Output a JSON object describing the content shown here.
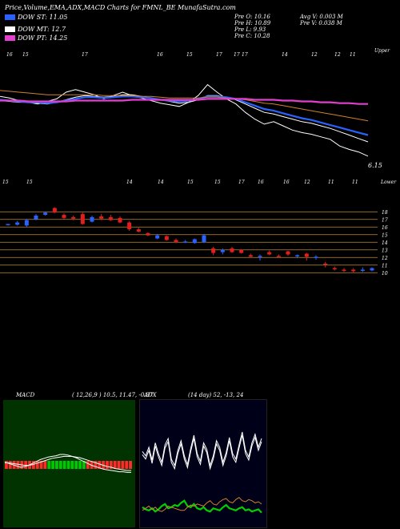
{
  "header": {
    "title": "Price,Volume,EMA,ADX,MACD Charts for FMNL_BE MunafaSutra.com",
    "legend": [
      {
        "label": "DOW ST: 11.05",
        "color": "#2a62ff"
      },
      {
        "label": "DOW MT: 12.7",
        "color": "#ffffff"
      },
      {
        "label": "DOW PT: 14.25",
        "color": "#e23fd0"
      }
    ],
    "stats_left": [
      "Pre O: 10.16",
      "Pre H: 10.89",
      "Pre L: 9.93",
      "Pre C: 10.28"
    ],
    "stats_right": [
      "Avg V: 0.003 M",
      "Pre V: 0.038 M"
    ]
  },
  "chart_data": [
    {
      "type": "line",
      "name": "price-ema",
      "tick_labels_top": [
        "16",
        "15",
        "17",
        "16",
        "15",
        "17",
        "17",
        "17",
        "14",
        "12",
        "12",
        "11"
      ],
      "tick_labels_bottom": [
        "15",
        "15",
        "14",
        "14",
        "15",
        "15",
        "17",
        "16",
        "16",
        "12",
        "11",
        "11",
        "10"
      ],
      "upper_note": "Upper",
      "lower_note": "Lower",
      "last_label": "6.15",
      "series": [
        {
          "color": "#ffffff",
          "values": [
            15.5,
            15.3,
            15.0,
            14.8,
            14.6,
            14.9,
            15.2,
            16.0,
            16.3,
            16.0,
            15.7,
            15.2,
            15.6,
            16.0,
            15.6,
            15.3,
            15.0,
            14.7,
            14.5,
            14.3,
            14.8,
            15.6,
            16.9,
            16.0,
            15.2,
            14.6,
            13.6,
            12.8,
            12.2,
            12.5,
            12.0,
            11.5,
            11.2,
            11.0,
            10.7,
            10.4,
            9.6,
            9.2,
            8.9,
            8.4
          ]
        },
        {
          "color": "#ffffff",
          "values": [
            15.0,
            14.9,
            14.8,
            14.8,
            14.7,
            14.6,
            14.8,
            15.1,
            15.4,
            15.6,
            15.5,
            15.4,
            15.5,
            15.7,
            15.7,
            15.5,
            15.3,
            15.1,
            14.9,
            14.7,
            14.8,
            15.1,
            15.6,
            15.6,
            15.4,
            15.1,
            14.6,
            14.1,
            13.6,
            13.4,
            13.1,
            12.8,
            12.5,
            12.3,
            12.0,
            11.7,
            11.3,
            10.9,
            10.5,
            10.1
          ]
        },
        {
          "color": "#2a62ff",
          "values": [
            15.1,
            15.0,
            14.9,
            14.8,
            14.8,
            14.7,
            14.8,
            15.0,
            15.2,
            15.4,
            15.4,
            15.3,
            15.4,
            15.5,
            15.5,
            15.4,
            15.3,
            15.1,
            15.0,
            14.9,
            15.0,
            15.2,
            15.5,
            15.5,
            15.4,
            15.2,
            14.8,
            14.4,
            14.0,
            13.8,
            13.5,
            13.2,
            12.9,
            12.7,
            12.4,
            12.1,
            11.8,
            11.5,
            11.2,
            10.9
          ]
        },
        {
          "color": "#d08030",
          "values": [
            16.2,
            16.1,
            16.0,
            15.9,
            15.8,
            15.7,
            15.7,
            15.7,
            15.7,
            15.7,
            15.7,
            15.6,
            15.6,
            15.6,
            15.6,
            15.5,
            15.5,
            15.4,
            15.3,
            15.3,
            15.3,
            15.3,
            15.4,
            15.4,
            15.3,
            15.2,
            15.1,
            14.9,
            14.7,
            14.6,
            14.4,
            14.2,
            14.0,
            13.8,
            13.6,
            13.4,
            13.2,
            13.0,
            12.8,
            12.6
          ]
        },
        {
          "color": "#e23fd0",
          "values": [
            15.0,
            15.0,
            15.0,
            14.9,
            14.9,
            14.9,
            14.9,
            14.9,
            15.0,
            15.0,
            15.0,
            15.0,
            15.0,
            15.0,
            15.1,
            15.1,
            15.1,
            15.1,
            15.1,
            15.1,
            15.1,
            15.1,
            15.2,
            15.2,
            15.2,
            15.2,
            15.2,
            15.1,
            15.1,
            15.1,
            15.0,
            15.0,
            14.9,
            14.9,
            14.8,
            14.8,
            14.7,
            14.7,
            14.6,
            14.6
          ]
        }
      ]
    },
    {
      "type": "candlestick",
      "name": "candles",
      "y_ticks": [
        18,
        17,
        16,
        15,
        14,
        13,
        12,
        11,
        10
      ],
      "candles": [
        {
          "o": 16.4,
          "c": 16.4,
          "h": 16.4,
          "l": 16.2,
          "color": "#2a62ff"
        },
        {
          "o": 16.3,
          "c": 16.6,
          "h": 16.8,
          "l": 16.2,
          "color": "#2a62ff"
        },
        {
          "o": 16.2,
          "c": 16.9,
          "h": 17.1,
          "l": 16.0,
          "color": "#2a62ff"
        },
        {
          "o": 17.0,
          "c": 17.5,
          "h": 17.7,
          "l": 16.9,
          "color": "#2a62ff"
        },
        {
          "o": 17.6,
          "c": 17.9,
          "h": 18.0,
          "l": 17.5,
          "color": "#2a62ff"
        },
        {
          "o": 18.5,
          "c": 17.9,
          "h": 18.6,
          "l": 17.8,
          "color": "#e02020"
        },
        {
          "o": 17.6,
          "c": 17.2,
          "h": 17.8,
          "l": 17.0,
          "color": "#e02020"
        },
        {
          "o": 17.3,
          "c": 17.1,
          "h": 17.5,
          "l": 16.9,
          "color": "#e02020"
        },
        {
          "o": 17.7,
          "c": 16.4,
          "h": 17.9,
          "l": 16.3,
          "color": "#e02020"
        },
        {
          "o": 16.7,
          "c": 17.3,
          "h": 17.5,
          "l": 16.6,
          "color": "#2a62ff"
        },
        {
          "o": 17.4,
          "c": 17.1,
          "h": 17.7,
          "l": 16.9,
          "color": "#e02020"
        },
        {
          "o": 17.3,
          "c": 16.9,
          "h": 17.6,
          "l": 16.8,
          "color": "#e02020"
        },
        {
          "o": 17.2,
          "c": 16.6,
          "h": 17.4,
          "l": 16.5,
          "color": "#e02020"
        },
        {
          "o": 16.6,
          "c": 15.7,
          "h": 16.8,
          "l": 15.5,
          "color": "#e02020"
        },
        {
          "o": 15.7,
          "c": 15.4,
          "h": 15.9,
          "l": 15.3,
          "color": "#e02020"
        },
        {
          "o": 15.2,
          "c": 14.9,
          "h": 15.3,
          "l": 14.8,
          "color": "#e02020"
        },
        {
          "o": 14.5,
          "c": 14.9,
          "h": 15.1,
          "l": 14.4,
          "color": "#2a62ff"
        },
        {
          "o": 14.8,
          "c": 14.3,
          "h": 14.9,
          "l": 14.2,
          "color": "#e02020"
        },
        {
          "o": 14.3,
          "c": 14.0,
          "h": 14.5,
          "l": 13.9,
          "color": "#e02020"
        },
        {
          "o": 14.0,
          "c": 14.1,
          "h": 14.3,
          "l": 13.9,
          "color": "#2a62ff"
        },
        {
          "o": 13.9,
          "c": 14.4,
          "h": 14.5,
          "l": 13.8,
          "color": "#2a62ff"
        },
        {
          "o": 14.0,
          "c": 14.9,
          "h": 15.1,
          "l": 13.9,
          "color": "#2a62ff"
        },
        {
          "o": 13.2,
          "c": 12.6,
          "h": 13.4,
          "l": 12.3,
          "color": "#e02020"
        },
        {
          "o": 12.7,
          "c": 13.0,
          "h": 13.2,
          "l": 12.4,
          "color": "#2a62ff"
        },
        {
          "o": 13.2,
          "c": 12.7,
          "h": 13.4,
          "l": 12.6,
          "color": "#e02020"
        },
        {
          "o": 13.0,
          "c": 12.6,
          "h": 13.1,
          "l": 12.5,
          "color": "#e02020"
        },
        {
          "o": 12.3,
          "c": 12.1,
          "h": 12.5,
          "l": 12.0,
          "color": "#e02020"
        },
        {
          "o": 12.1,
          "c": 12.2,
          "h": 12.4,
          "l": 11.6,
          "color": "#2a62ff"
        },
        {
          "o": 12.7,
          "c": 12.4,
          "h": 12.9,
          "l": 12.3,
          "color": "#e02020"
        },
        {
          "o": 12.2,
          "c": 12.2,
          "h": 12.4,
          "l": 12.0,
          "color": "#e02020"
        },
        {
          "o": 12.8,
          "c": 12.4,
          "h": 12.9,
          "l": 12.2,
          "color": "#e02020"
        },
        {
          "o": 12.2,
          "c": 12.3,
          "h": 12.4,
          "l": 11.9,
          "color": "#2a62ff"
        },
        {
          "o": 12.5,
          "c": 12.1,
          "h": 12.6,
          "l": 11.6,
          "color": "#e02020"
        },
        {
          "o": 12.1,
          "c": 12.1,
          "h": 12.3,
          "l": 11.7,
          "color": "#2a62ff"
        },
        {
          "o": 11.2,
          "c": 11.1,
          "h": 11.4,
          "l": 10.7,
          "color": "#e02020"
        },
        {
          "o": 10.6,
          "c": 10.5,
          "h": 10.8,
          "l": 10.3,
          "color": "#e02020"
        },
        {
          "o": 10.4,
          "c": 10.3,
          "h": 10.6,
          "l": 10.1,
          "color": "#e02020"
        },
        {
          "o": 10.2,
          "c": 10.4,
          "h": 10.6,
          "l": 10.0,
          "color": "#e02020"
        },
        {
          "o": 10.3,
          "c": 10.4,
          "h": 10.7,
          "l": 10.1,
          "color": "#2a62ff"
        },
        {
          "o": 10.3,
          "c": 10.6,
          "h": 10.7,
          "l": 10.2,
          "color": "#2a62ff"
        }
      ]
    },
    {
      "type": "line",
      "name": "macd",
      "label": "MACD",
      "params": "( 12,26,9 ) 10.5, 11.47, -0.97",
      "series": [
        {
          "color": "#ffffff",
          "values": [
            0.3,
            0.1,
            -0.1,
            -0.3,
            -0.5,
            -0.4,
            -0.2,
            0.1,
            0.4,
            0.7,
            0.9,
            1.1,
            1.2,
            1.3,
            1.5,
            1.5,
            1.4,
            1.2,
            1.0,
            0.7,
            0.4,
            0.1,
            -0.2,
            -0.4,
            -0.6,
            -0.8,
            -0.9,
            -1.0,
            -1.1,
            -1.2,
            -1.2,
            -1.3,
            -1.3
          ]
        },
        {
          "color": "#ffffff",
          "values": [
            0.2,
            0.2,
            0.1,
            0.0,
            -0.1,
            -0.2,
            -0.2,
            -0.1,
            0.1,
            0.3,
            0.5,
            0.7,
            0.9,
            1.0,
            1.1,
            1.2,
            1.2,
            1.2,
            1.1,
            1.0,
            0.8,
            0.6,
            0.4,
            0.2,
            0.0,
            -0.2,
            -0.4,
            -0.5,
            -0.7,
            -0.8,
            -0.9,
            -1.0,
            -1.0
          ]
        }
      ],
      "hist": [
        0.5,
        0.5,
        0.5,
        0.5,
        0.5,
        0.5,
        0.5,
        0.5,
        0.5,
        0.5,
        0.5,
        0.5,
        0.5,
        0.5,
        0.5,
        0.5,
        0.5,
        0.5,
        0.5,
        0.5,
        0.5,
        0.5,
        0.5,
        0.5,
        0.5,
        0.5,
        0.5,
        0.5,
        0.5,
        0.5,
        0.5,
        0.5,
        0.5
      ],
      "hist_green_from": 11,
      "hist_green_to": 20,
      "ylim": [
        -3,
        3
      ]
    },
    {
      "type": "line",
      "name": "adx",
      "label": "ADX",
      "params": "(14 day) 52, -13, 24",
      "series": [
        {
          "color": "#ffffff",
          "values": [
            62,
            58,
            66,
            54,
            70,
            60,
            52,
            68,
            74,
            55,
            49,
            63,
            72,
            58,
            50,
            65,
            77,
            60,
            53,
            70,
            64,
            49,
            58,
            72,
            66,
            52,
            61,
            75,
            60,
            55,
            68,
            80,
            63,
            57,
            70,
            78,
            66,
            74
          ]
        },
        {
          "color": "#00d000",
          "values": [
            12,
            10,
            9,
            11,
            8,
            10,
            13,
            15,
            11,
            12,
            14,
            13,
            16,
            18,
            13,
            12,
            15,
            11,
            10,
            12,
            9,
            8,
            11,
            10,
            9,
            12,
            14,
            11,
            10,
            9,
            11,
            12,
            9,
            10,
            8,
            9,
            10,
            7
          ]
        },
        {
          "color": "#d08030",
          "values": [
            9,
            11,
            13,
            10,
            12,
            9,
            8,
            10,
            13,
            12,
            11,
            10,
            9,
            9,
            12,
            14,
            13,
            15,
            14,
            13,
            16,
            18,
            15,
            14,
            17,
            19,
            20,
            17,
            16,
            19,
            21,
            18,
            17,
            19,
            18,
            16,
            17,
            15
          ]
        }
      ],
      "ylim": [
        0,
        100
      ]
    }
  ]
}
